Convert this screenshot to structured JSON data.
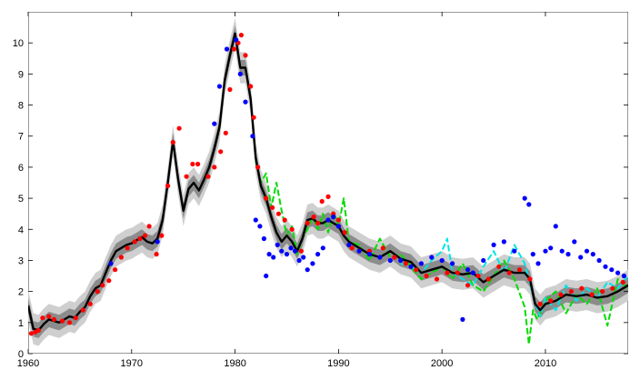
{
  "chart_data": {
    "type": "line",
    "title": "",
    "xlabel": "",
    "ylabel": "",
    "xlim": [
      1960,
      2018
    ],
    "ylim": [
      0,
      11
    ],
    "xticks": [
      "1960",
      "1970",
      "1980",
      "1990",
      "2000",
      "2010"
    ],
    "yticks": [
      "0",
      "1",
      "2",
      "3",
      "4",
      "5",
      "6",
      "7",
      "8",
      "9",
      "10"
    ],
    "grid": false,
    "legend": "none",
    "colors": {
      "estimate": "#000000",
      "band_inner": "#8c8c8c",
      "band_outer": "#cfcfcf",
      "red_points": "#ff0000",
      "blue_points": "#0000ff",
      "green_dashed": "#00dd00",
      "cyan_dashed": "#00e5e5"
    },
    "estimate": {
      "x": [
        1960.0,
        1960.5,
        1961.0,
        1961.5,
        1962.0,
        1962.5,
        1963.0,
        1963.5,
        1964.0,
        1964.5,
        1965.0,
        1965.5,
        1966.0,
        1966.5,
        1967.0,
        1967.5,
        1968.0,
        1968.5,
        1969.0,
        1969.5,
        1970.0,
        1970.5,
        1971.0,
        1971.5,
        1972.0,
        1972.5,
        1973.0,
        1973.5,
        1974.0,
        1974.5,
        1975.0,
        1975.5,
        1976.0,
        1976.5,
        1977.0,
        1977.5,
        1978.0,
        1978.5,
        1979.0,
        1979.5,
        1980.0,
        1980.5,
        1981.0,
        1981.5,
        1982.0,
        1982.5,
        1983.0,
        1983.5,
        1984.0,
        1984.5,
        1985.0,
        1985.5,
        1986.0,
        1986.5,
        1987.0,
        1987.5,
        1988.0,
        1988.5,
        1989.0,
        1989.5,
        1990.0,
        1990.5,
        1991.0,
        1992.0,
        1993.0,
        1994.0,
        1995.0,
        1996.0,
        1997.0,
        1998.0,
        1999.0,
        2000.0,
        2001.0,
        2002.0,
        2003.0,
        2004.0,
        2005.0,
        2006.0,
        2007.0,
        2008.0,
        2008.5,
        2009.0,
        2009.5,
        2010.0,
        2011.0,
        2012.0,
        2013.0,
        2014.0,
        2015.0,
        2016.0,
        2017.0,
        2018.0
      ],
      "y": [
        1.55,
        0.8,
        0.75,
        0.95,
        1.1,
        1.05,
        1.0,
        1.1,
        1.2,
        1.15,
        1.35,
        1.5,
        1.85,
        2.1,
        2.2,
        2.6,
        3.0,
        3.3,
        3.4,
        3.5,
        3.55,
        3.65,
        3.75,
        3.6,
        3.55,
        3.7,
        4.3,
        5.5,
        6.85,
        5.6,
        4.6,
        5.3,
        5.5,
        5.25,
        5.6,
        6.0,
        6.6,
        7.3,
        8.8,
        9.6,
        10.3,
        9.2,
        9.2,
        8.2,
        6.3,
        5.4,
        5.0,
        4.4,
        3.9,
        3.6,
        3.8,
        3.6,
        3.3,
        3.7,
        4.3,
        4.35,
        4.2,
        4.2,
        4.3,
        4.2,
        4.1,
        3.8,
        3.6,
        3.4,
        3.2,
        3.1,
        3.3,
        3.05,
        2.95,
        2.6,
        2.7,
        2.8,
        2.6,
        2.55,
        2.6,
        2.3,
        2.5,
        2.7,
        2.6,
        2.6,
        2.4,
        1.6,
        1.4,
        1.6,
        1.7,
        1.9,
        1.85,
        1.9,
        1.8,
        1.85,
        2.0,
        2.2
      ]
    },
    "red_points": {
      "x": [
        1960.3,
        1960.7,
        1961.0,
        1961.4,
        1962.0,
        1962.5,
        1963.3,
        1964.0,
        1964.6,
        1965.3,
        1966.0,
        1966.7,
        1967.2,
        1967.8,
        1968.4,
        1969.0,
        1969.6,
        1970.3,
        1970.8,
        1971.3,
        1971.7,
        1972.4,
        1972.9,
        1973.5,
        1974.0,
        1974.6,
        1975.3,
        1975.9,
        1976.4,
        1977.4,
        1978.0,
        1978.6,
        1979.1,
        1979.5,
        1979.9,
        1980.3,
        1980.6,
        1981.0,
        1981.5,
        1981.8,
        1982.2,
        1983.0,
        1983.6,
        1984.2,
        1984.8,
        1985.5,
        1986.4,
        1987.0,
        1987.6,
        1988.0,
        1988.4,
        1989.0,
        1989.5,
        1990.0,
        1990.6,
        1991.3,
        1992.0,
        1993.0,
        1994.3,
        1995.4,
        1996.5,
        1997.5,
        1998.5,
        1999.5,
        2000.5,
        2001.5,
        2002.5,
        2003.5,
        2004.5,
        2005.5,
        2006.5,
        2007.5,
        2008.5,
        2009.5,
        2010.5,
        2011.5,
        2012.5,
        2013.5,
        2014.5,
        2015.5,
        2016.5,
        2017.5
      ],
      "y": [
        0.65,
        0.7,
        0.75,
        1.15,
        1.2,
        1.1,
        1.05,
        1.0,
        1.15,
        1.4,
        1.6,
        2.0,
        2.2,
        2.35,
        2.7,
        3.1,
        3.4,
        3.6,
        3.7,
        3.8,
        4.1,
        3.2,
        3.8,
        5.4,
        6.8,
        7.25,
        5.7,
        6.1,
        6.1,
        5.7,
        6.0,
        6.5,
        7.1,
        8.5,
        9.8,
        10.0,
        10.25,
        9.6,
        8.6,
        7.6,
        6.0,
        5.0,
        4.7,
        4.5,
        4.3,
        4.0,
        3.3,
        4.2,
        4.4,
        4.2,
        4.9,
        5.05,
        4.5,
        4.3,
        3.9,
        3.4,
        3.3,
        3.3,
        3.4,
        3.1,
        2.9,
        2.7,
        2.5,
        2.4,
        2.6,
        2.6,
        2.2,
        2.5,
        2.4,
        2.8,
        2.6,
        2.7,
        2.4,
        1.6,
        1.7,
        1.9,
        2.0,
        2.1,
        1.9,
        2.0,
        2.1,
        2.3
      ]
    },
    "blue_points": {
      "x": [
        1968.0,
        1972.5,
        1978.0,
        1978.5,
        1979.2,
        1980.1,
        1980.5,
        1981.0,
        1981.7,
        1982.0,
        1982.4,
        1982.8,
        1983.0,
        1983.3,
        1983.7,
        1984.1,
        1984.5,
        1985.0,
        1985.4,
        1985.8,
        1986.2,
        1986.6,
        1987.0,
        1987.5,
        1988.0,
        1988.5,
        1989.0,
        1989.5,
        1990.0,
        1991.0,
        1992.0,
        1993.0,
        1994.0,
        1995.0,
        1996.0,
        1997.0,
        1998.0,
        1999.0,
        2000.0,
        2001.0,
        2002.0,
        2002.5,
        2003.0,
        2004.0,
        2005.0,
        2006.0,
        2007.0,
        2008.0,
        2008.4,
        2008.8,
        2009.3,
        2010.0,
        2010.5,
        2011.0,
        2011.6,
        2012.2,
        2012.8,
        2013.4,
        2014.0,
        2014.6,
        2015.2,
        2015.8,
        2016.4,
        2017.0,
        2017.6
      ],
      "y": [
        2.9,
        3.6,
        7.4,
        8.6,
        9.8,
        10.1,
        9.0,
        8.1,
        7.0,
        4.3,
        4.1,
        3.7,
        2.5,
        3.2,
        3.1,
        3.5,
        3.3,
        3.2,
        3.4,
        3.3,
        3.0,
        3.1,
        2.7,
        2.9,
        3.2,
        3.4,
        4.3,
        4.4,
        4.1,
        3.5,
        3.3,
        3.2,
        3.1,
        3.0,
        3.0,
        2.8,
        2.9,
        3.1,
        3.0,
        2.9,
        1.1,
        2.7,
        2.6,
        3.0,
        3.5,
        3.6,
        3.3,
        5.0,
        4.8,
        3.2,
        2.9,
        3.3,
        3.4,
        4.1,
        3.3,
        3.2,
        3.6,
        3.1,
        3.3,
        3.2,
        3.0,
        2.8,
        2.7,
        2.6,
        2.5
      ]
    },
    "green_dashed": {
      "x": [
        1982.0,
        1982.5,
        1983.0,
        1983.5,
        1984.0,
        1984.5,
        1985.0,
        1985.5,
        1986.0,
        1986.5,
        1987.0,
        1987.5,
        1988.0,
        1988.5,
        1989.0,
        1989.5,
        1990.0,
        1990.5,
        1991.0,
        1992.0,
        1993.0,
        1994.0,
        1995.0,
        1996.0,
        1997.0,
        1998.0,
        1999.0,
        2000.0,
        2001.0,
        2002.0,
        2003.0,
        2004.0,
        2005.0,
        2006.0,
        2007.0,
        2008.0,
        2008.4,
        2008.8,
        2009.2,
        2010.0,
        2011.0,
        2012.0,
        2013.0,
        2014.0,
        2015.0,
        2016.0,
        2017.0,
        2018.0
      ],
      "y": [
        6.2,
        5.5,
        5.8,
        4.7,
        5.5,
        4.6,
        3.8,
        4.1,
        3.2,
        3.7,
        4.0,
        4.4,
        4.0,
        4.5,
        3.9,
        4.6,
        4.1,
        5.0,
        3.6,
        3.5,
        3.0,
        3.7,
        3.1,
        3.2,
        2.8,
        2.4,
        2.6,
        2.8,
        2.4,
        2.9,
        2.2,
        2.0,
        2.5,
        3.0,
        2.4,
        1.5,
        0.3,
        1.4,
        1.1,
        1.7,
        2.0,
        1.3,
        1.9,
        1.6,
        2.1,
        0.9,
        2.4,
        2.1
      ]
    },
    "cyan_dashed": {
      "x": [
        1996.0,
        1997.0,
        1998.0,
        1999.0,
        2000.0,
        2000.5,
        2001.0,
        2002.0,
        2003.0,
        2004.0,
        2005.0,
        2006.0,
        2007.0,
        2008.0,
        2009.0,
        2009.5,
        2010.0,
        2011.0,
        2012.0,
        2013.0,
        2014.0,
        2015.0,
        2016.0,
        2017.0,
        2018.0
      ],
      "y": [
        2.9,
        2.8,
        2.6,
        3.0,
        3.3,
        3.7,
        2.6,
        2.4,
        2.2,
        2.8,
        3.3,
        2.6,
        3.5,
        2.9,
        1.6,
        1.2,
        1.8,
        1.4,
        2.2,
        1.7,
        2.1,
        1.8,
        2.3,
        2.1,
        2.5
      ]
    }
  }
}
